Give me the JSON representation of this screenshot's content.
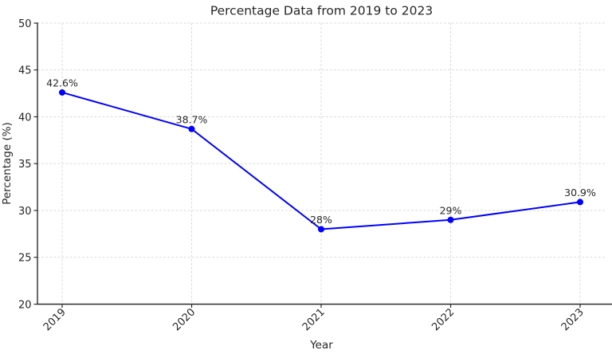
{
  "chart_data": {
    "type": "line",
    "title": "Percentage Data from 2019 to 2023",
    "xlabel": "Year",
    "ylabel": "Percentage (%)",
    "categories": [
      "2019",
      "2020",
      "2021",
      "2022",
      "2023"
    ],
    "values": [
      42.6,
      38.7,
      28.0,
      29.0,
      30.9
    ],
    "point_labels": [
      "42.6%",
      "38.7%",
      "28%",
      "29%",
      "30.9%"
    ],
    "ylim": [
      20,
      50
    ],
    "yticks": [
      20,
      25,
      30,
      35,
      40,
      45,
      50
    ],
    "grid": true,
    "grid_style": "dashed",
    "legend_position": "none",
    "line_color": "#0000ff",
    "marker": "circle",
    "grid_color": "#d9d9d9",
    "axis_color": "#2b2b2b",
    "text_color": "#262626",
    "background_color": "#ffffff"
  }
}
